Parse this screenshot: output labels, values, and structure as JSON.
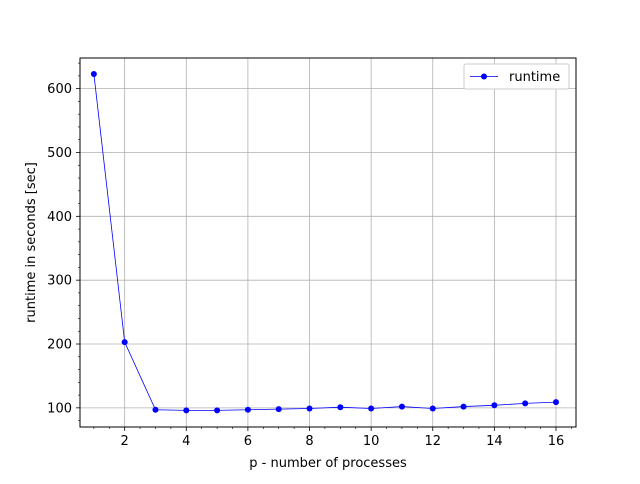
{
  "chart_data": {
    "type": "line",
    "title": "",
    "xlabel": "p - number of processes",
    "ylabel": "runtime in seconds [sec]",
    "xlim": [
      0.55,
      16.65
    ],
    "ylim": [
      70,
      648
    ],
    "xticks": [
      2,
      4,
      6,
      8,
      10,
      12,
      14,
      16
    ],
    "yticks": [
      100,
      200,
      300,
      400,
      500,
      600
    ],
    "grid": true,
    "legend": "top-right",
    "series": [
      {
        "name": "runtime",
        "color": "#0000ff",
        "marker": "circle",
        "x": [
          1,
          2,
          3,
          4,
          5,
          6,
          7,
          8,
          9,
          10,
          11,
          12,
          13,
          14,
          15,
          16
        ],
        "y": [
          623,
          203,
          97,
          96,
          96,
          97,
          98,
          99,
          101,
          99,
          102,
          99,
          102,
          104,
          107,
          109
        ]
      }
    ]
  }
}
